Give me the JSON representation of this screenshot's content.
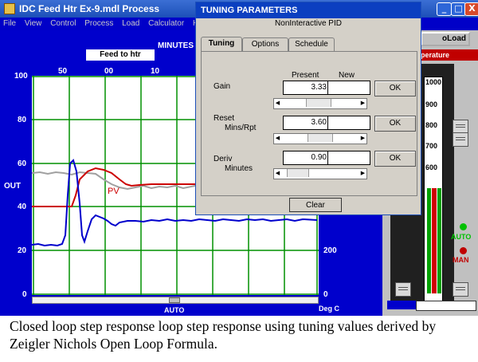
{
  "window": {
    "title": "IDC Feed Htr Ex-9.mdl Process",
    "buttons": {
      "minimize": "_",
      "maximize": "□",
      "close": "X"
    }
  },
  "menu": [
    "File",
    "View",
    "Control",
    "Process",
    "Load",
    "Calculator",
    "Help"
  ],
  "trend": {
    "tag": "Feed to htr",
    "time_unit": "MINUTES",
    "time_ticks": [
      "50",
      "00",
      "10"
    ],
    "left_axis": [
      "100",
      "80",
      "60",
      "40",
      "20",
      "0"
    ],
    "out_label": "OUT",
    "right_axis": [
      "200",
      "0"
    ],
    "pv_label": "PV",
    "bottom_mode": "AUTO",
    "units": "Deg C",
    "series": [
      {
        "name": "PV",
        "color": "#cc0000"
      },
      {
        "name": "OUT",
        "color": "#0000cc"
      }
    ]
  },
  "side_panel": {
    "load_button": "oLoad",
    "temperature_label": "perature",
    "scale": [
      "1000",
      "900",
      "800",
      "700",
      "600"
    ],
    "auto_label": "AUTO",
    "man_label": "MAN",
    "colors": {
      "auto_led": "#00c000",
      "man_led": "#c00000",
      "pv_bar": "#00a000",
      "sp_bar": "#d00000"
    }
  },
  "dialog": {
    "title": "TUNING PARAMETERS",
    "subtitle": "NonInteractive PID",
    "tabs": [
      "Tuning",
      "Options",
      "Schedule"
    ],
    "active_tab": "Tuning",
    "col_present": "Present",
    "col_new": "New",
    "params": [
      {
        "label": "Gain",
        "sublabel": "",
        "present": "3.33",
        "new": "",
        "ok": "OK"
      },
      {
        "label": "Reset",
        "sublabel": "Mins/Rpt",
        "present": "3.60",
        "new": "",
        "ok": "OK"
      },
      {
        "label": "Deriv",
        "sublabel": "Minutes",
        "present": "0.90",
        "new": "",
        "ok": "OK"
      }
    ],
    "clear": "Clear"
  },
  "caption": "Closed loop step response loop step response using tuning values derived by Zeigler Nichols Open Loop Formula."
}
